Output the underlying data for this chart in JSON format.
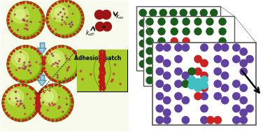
{
  "bg_color": "#ffffff",
  "colloid_green_outer": "#8ab820",
  "colloid_green_inner": "#c8e050",
  "colloid_highlight": "#e8f890",
  "colloid_border": "#6a9010",
  "binder_red": "#cc2020",
  "binder_purple": "#885599",
  "binder_blue": "#6688aa",
  "dark_red": "#8b1010",
  "arrow_fill": "#88bbcc",
  "arrow_outline": "#4488aa",
  "dot_dark_green": "#1a5c1a",
  "dot_red": "#cc2222",
  "dot_purple": "#6040a0",
  "dot_cyan": "#40c0c0",
  "frame_edge": "#555555",
  "time_color": "#111111"
}
